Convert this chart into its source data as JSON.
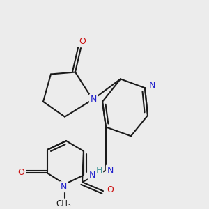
{
  "background_color": "#ececec",
  "atom_color_N": "#2020cc",
  "atom_color_O": "#cc1111",
  "atom_color_H": "#4a9a9a",
  "bond_color": "#1a1a1a",
  "bond_width": 1.5,
  "figsize": [
    3.0,
    3.0
  ],
  "dpi": 100,
  "xlim": [
    0,
    300
  ],
  "ylim": [
    0,
    300
  ]
}
